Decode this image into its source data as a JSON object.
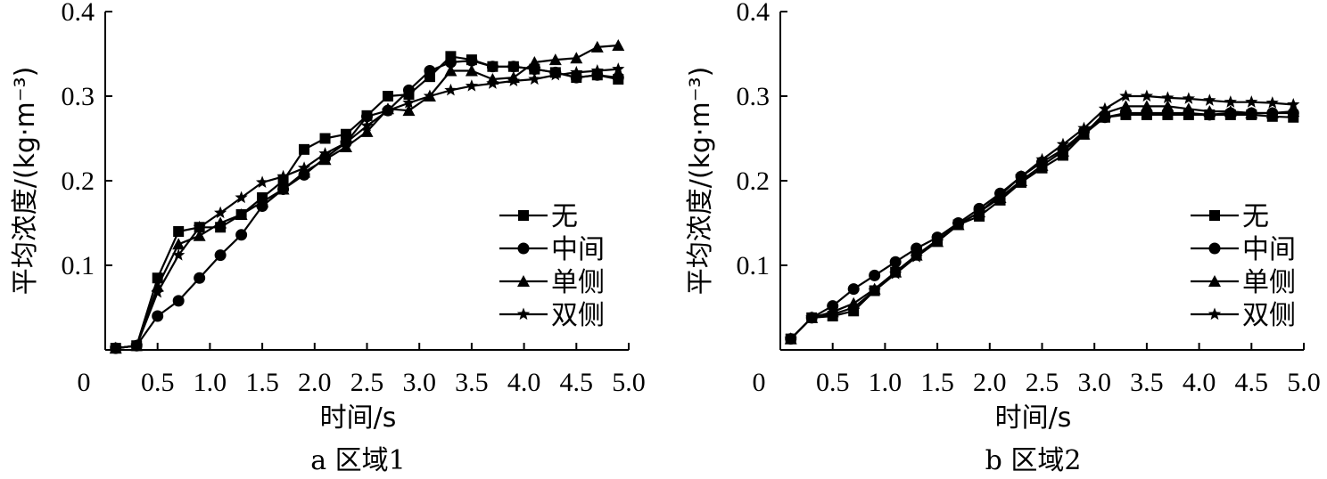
{
  "chart_data": [
    {
      "type": "line",
      "caption": "a 区域1",
      "xlabel": "时间/s",
      "ylabel": "平均浓度/(kg·m⁻³)",
      "xlim": [
        0,
        5.0
      ],
      "ylim": [
        0,
        0.4
      ],
      "xticks": [
        "0",
        "0.5",
        "1.0",
        "1.5",
        "2.0",
        "2.5",
        "3.0",
        "3.5",
        "4.0",
        "4.5",
        "5.0"
      ],
      "yticks": [
        "0.1",
        "0.2",
        "0.3",
        "0.4"
      ],
      "legend_position": "right",
      "grid": false,
      "series": [
        {
          "name": "无",
          "marker": "square",
          "x": [
            0.1,
            0.3,
            0.5,
            0.7,
            0.9,
            1.1,
            1.3,
            1.5,
            1.7,
            1.9,
            2.1,
            2.3,
            2.5,
            2.7,
            2.9,
            3.1,
            3.3,
            3.5,
            3.7,
            3.9,
            4.1,
            4.3,
            4.5,
            4.7,
            4.9
          ],
          "y": [
            0.002,
            0.005,
            0.085,
            0.14,
            0.145,
            0.145,
            0.16,
            0.18,
            0.2,
            0.237,
            0.25,
            0.255,
            0.277,
            0.3,
            0.302,
            0.323,
            0.347,
            0.343,
            0.335,
            0.335,
            0.332,
            0.328,
            0.322,
            0.325,
            0.32
          ]
        },
        {
          "name": "中间",
          "marker": "circle",
          "x": [
            0.1,
            0.3,
            0.5,
            0.7,
            0.9,
            1.1,
            1.3,
            1.5,
            1.7,
            1.9,
            2.1,
            2.3,
            2.5,
            2.7,
            2.9,
            3.1,
            3.3,
            3.5,
            3.7,
            3.9,
            4.1,
            4.3,
            4.5,
            4.7,
            4.9
          ],
          "y": [
            0.002,
            0.005,
            0.04,
            0.058,
            0.085,
            0.112,
            0.136,
            0.17,
            0.19,
            0.207,
            0.227,
            0.245,
            0.276,
            0.283,
            0.307,
            0.33,
            0.34,
            0.342,
            0.335,
            0.335,
            0.332,
            0.328,
            0.322,
            0.325,
            0.322
          ]
        },
        {
          "name": "单侧",
          "marker": "triangle",
          "x": [
            0.1,
            0.3,
            0.5,
            0.7,
            0.9,
            1.1,
            1.3,
            1.5,
            1.7,
            1.9,
            2.1,
            2.3,
            2.5,
            2.7,
            2.9,
            3.1,
            3.3,
            3.5,
            3.7,
            3.9,
            4.1,
            4.3,
            4.5,
            4.7,
            4.9
          ],
          "y": [
            0.002,
            0.005,
            0.075,
            0.125,
            0.135,
            0.15,
            0.16,
            0.175,
            0.19,
            0.21,
            0.225,
            0.24,
            0.258,
            0.285,
            0.283,
            0.3,
            0.33,
            0.33,
            0.32,
            0.322,
            0.34,
            0.343,
            0.345,
            0.358,
            0.36
          ]
        },
        {
          "name": "双侧",
          "marker": "star",
          "x": [
            0.1,
            0.3,
            0.5,
            0.7,
            0.9,
            1.1,
            1.3,
            1.5,
            1.7,
            1.9,
            2.1,
            2.3,
            2.5,
            2.7,
            2.9,
            3.1,
            3.3,
            3.5,
            3.7,
            3.9,
            4.1,
            4.3,
            4.5,
            4.7,
            4.9
          ],
          "y": [
            0.002,
            0.005,
            0.068,
            0.112,
            0.145,
            0.162,
            0.18,
            0.198,
            0.205,
            0.215,
            0.232,
            0.245,
            0.265,
            0.283,
            0.292,
            0.3,
            0.307,
            0.312,
            0.315,
            0.318,
            0.32,
            0.325,
            0.328,
            0.33,
            0.332
          ]
        }
      ]
    },
    {
      "type": "line",
      "caption": "b 区域2",
      "xlabel": "时间/s",
      "ylabel": "平均浓度/(kg·m⁻³)",
      "xlim": [
        0,
        5.0
      ],
      "ylim": [
        0,
        0.4
      ],
      "xticks": [
        "0",
        "0.5",
        "1.0",
        "1.5",
        "2.0",
        "2.5",
        "3.0",
        "3.5",
        "4.0",
        "4.5",
        "5.0"
      ],
      "yticks": [
        "0.1",
        "0.2",
        "0.3",
        "0.4"
      ],
      "legend_position": "right",
      "grid": false,
      "series": [
        {
          "name": "无",
          "marker": "square",
          "x": [
            0.1,
            0.3,
            0.5,
            0.7,
            0.9,
            1.1,
            1.3,
            1.5,
            1.7,
            1.9,
            2.1,
            2.3,
            2.5,
            2.7,
            2.9,
            3.1,
            3.3,
            3.5,
            3.7,
            3.9,
            4.1,
            4.3,
            4.5,
            4.7,
            4.9
          ],
          "y": [
            0.013,
            0.038,
            0.04,
            0.046,
            0.07,
            0.092,
            0.112,
            0.13,
            0.148,
            0.158,
            0.177,
            0.198,
            0.215,
            0.23,
            0.255,
            0.275,
            0.278,
            0.278,
            0.278,
            0.278,
            0.278,
            0.278,
            0.278,
            0.276,
            0.275
          ]
        },
        {
          "name": "中间",
          "marker": "circle",
          "x": [
            0.1,
            0.3,
            0.5,
            0.7,
            0.9,
            1.1,
            1.3,
            1.5,
            1.7,
            1.9,
            2.1,
            2.3,
            2.5,
            2.7,
            2.9,
            3.1,
            3.3,
            3.5,
            3.7,
            3.9,
            4.1,
            4.3,
            4.5,
            4.7,
            4.9
          ],
          "y": [
            0.013,
            0.038,
            0.052,
            0.072,
            0.088,
            0.104,
            0.12,
            0.133,
            0.15,
            0.167,
            0.185,
            0.205,
            0.222,
            0.237,
            0.258,
            0.275,
            0.28,
            0.28,
            0.28,
            0.28,
            0.278,
            0.28,
            0.28,
            0.28,
            0.28
          ]
        },
        {
          "name": "单侧",
          "marker": "triangle",
          "x": [
            0.1,
            0.3,
            0.5,
            0.7,
            0.9,
            1.1,
            1.3,
            1.5,
            1.7,
            1.9,
            2.1,
            2.3,
            2.5,
            2.7,
            2.9,
            3.1,
            3.3,
            3.5,
            3.7,
            3.9,
            4.1,
            4.3,
            4.5,
            4.7,
            4.9
          ],
          "y": [
            0.013,
            0.038,
            0.045,
            0.055,
            0.072,
            0.092,
            0.112,
            0.128,
            0.148,
            0.163,
            0.18,
            0.2,
            0.218,
            0.235,
            0.255,
            0.28,
            0.288,
            0.288,
            0.288,
            0.285,
            0.282,
            0.282,
            0.28,
            0.28,
            0.282
          ]
        },
        {
          "name": "双侧",
          "marker": "star",
          "x": [
            0.1,
            0.3,
            0.5,
            0.7,
            0.9,
            1.1,
            1.3,
            1.5,
            1.7,
            1.9,
            2.1,
            2.3,
            2.5,
            2.7,
            2.9,
            3.1,
            3.3,
            3.5,
            3.7,
            3.9,
            4.1,
            4.3,
            4.5,
            4.7,
            4.9
          ],
          "y": [
            0.013,
            0.038,
            0.042,
            0.05,
            0.07,
            0.09,
            0.11,
            0.128,
            0.148,
            0.163,
            0.183,
            0.205,
            0.225,
            0.243,
            0.262,
            0.285,
            0.3,
            0.3,
            0.298,
            0.297,
            0.295,
            0.293,
            0.293,
            0.292,
            0.29
          ]
        }
      ]
    }
  ]
}
